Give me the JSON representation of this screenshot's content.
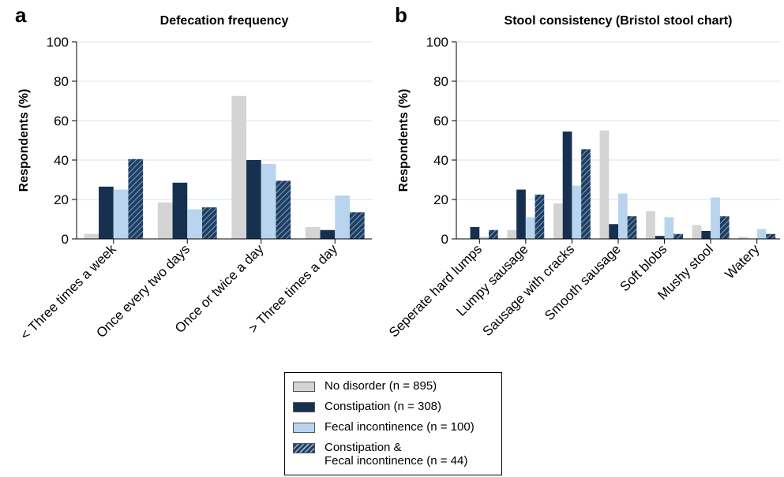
{
  "chart_data": [
    {
      "type": "bar",
      "panel_label": "a",
      "title": "Defecation frequency",
      "y_label": "Respondents (%)",
      "categories": [
        "< Three times a week",
        "Once every two days",
        "Once or twice a day",
        "> Three times a day"
      ],
      "series": [
        {
          "name": "No disorder (n = 895)",
          "color": "#d4d4d4",
          "values": [
            2.5,
            18.5,
            72.5,
            6
          ]
        },
        {
          "name": "Constipation (n = 308)",
          "color": "#16314f",
          "values": [
            26.5,
            28.5,
            40,
            4.5
          ]
        },
        {
          "name": "Fecal incontinence (n = 100)",
          "color": "#b8d4ee",
          "values": [
            25,
            15,
            38,
            22
          ]
        },
        {
          "name": "Constipation &\nFecal incontinence (n = 44)",
          "color": "#1f3f62",
          "hatch": true,
          "values": [
            40.5,
            16,
            29.5,
            13.5
          ]
        }
      ],
      "ylim": [
        0,
        100
      ],
      "yticks": [
        0,
        20,
        40,
        60,
        80,
        100
      ],
      "grid": true
    },
    {
      "type": "bar",
      "panel_label": "b",
      "title": "Stool consistency (Bristol stool chart)",
      "y_label": "Respondents (%)",
      "categories": [
        "Seperate hard lumps",
        "Lumpy sausage",
        "Sausage with cracks",
        "Smooth sausage",
        "Soft blobs",
        "Mushy stool",
        "Watery"
      ],
      "series": [
        {
          "color": "#d4d4d4",
          "values": [
            0,
            4.5,
            18,
            55,
            14,
            7,
            1
          ]
        },
        {
          "color": "#16314f",
          "values": [
            6,
            25,
            54.5,
            7.5,
            1.5,
            4,
            0
          ]
        },
        {
          "color": "#b8d4ee",
          "values": [
            1,
            11,
            27,
            23,
            11,
            21,
            5
          ]
        },
        {
          "color": "#1f3f62",
          "hatch": true,
          "values": [
            4.5,
            22.5,
            45.5,
            11.5,
            2.5,
            11.5,
            2.5
          ]
        }
      ],
      "ylim": [
        0,
        100
      ],
      "yticks": [
        0,
        20,
        40,
        60,
        80,
        100
      ],
      "grid": true
    }
  ]
}
